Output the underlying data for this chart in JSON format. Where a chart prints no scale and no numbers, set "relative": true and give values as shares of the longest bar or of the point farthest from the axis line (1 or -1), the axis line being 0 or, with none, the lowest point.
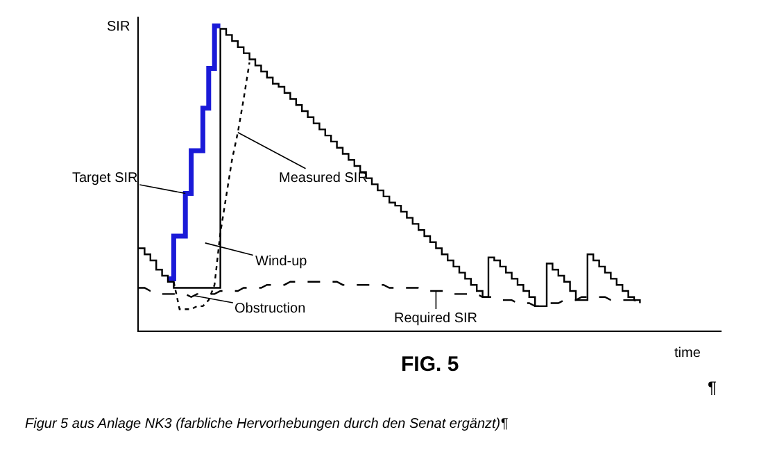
{
  "chart_data": {
    "type": "line",
    "relative": true,
    "title": "FIG. 5",
    "xlabel": "time",
    "ylabel": "SIR",
    "marker": "none",
    "categories": [
      null,
      null,
      null,
      null,
      null,
      null,
      null,
      null,
      null,
      null,
      null,
      null,
      null,
      null,
      null,
      null,
      null,
      null,
      null,
      null,
      null,
      null,
      null,
      null,
      null,
      null,
      null,
      null,
      null,
      null,
      null,
      null,
      null,
      null,
      null,
      null,
      null,
      null,
      null,
      null,
      null,
      null,
      null,
      null,
      null,
      null,
      null,
      null,
      null,
      null,
      null,
      null,
      null,
      null,
      null,
      null,
      null,
      null,
      null,
      null,
      null,
      null,
      null,
      null,
      null,
      null,
      null,
      null,
      null,
      null,
      null,
      null,
      null,
      null,
      null,
      null,
      null,
      null,
      null,
      null,
      null,
      null,
      null,
      null,
      null,
      null,
      null,
      null,
      null,
      null,
      null,
      null,
      null,
      null,
      null,
      null,
      null,
      null,
      null,
      null,
      null
    ],
    "series": [
      {
        "name": "Target SIR",
        "type": "step",
        "color": "#1a1ad8",
        "line_style": "solid",
        "values": [
          null,
          null,
          null,
          null,
          null,
          0.17,
          0.31,
          0.31,
          0.45,
          0.59,
          0.59,
          0.73,
          0.86,
          1.0,
          1.0,
          null,
          null,
          null,
          null,
          null,
          null,
          null,
          null,
          null,
          null,
          null,
          null,
          null,
          null,
          null,
          null,
          null,
          null,
          null,
          null,
          null,
          null,
          null,
          null,
          null,
          null,
          null,
          null,
          null,
          null,
          null,
          null,
          null,
          null,
          null,
          null,
          null,
          null,
          null,
          null,
          null,
          null,
          null,
          null,
          null,
          null,
          null,
          null,
          null,
          null,
          null,
          null,
          null,
          null,
          null,
          null,
          null,
          null,
          null,
          null,
          null,
          null,
          null,
          null,
          null,
          null,
          null,
          null,
          null,
          null,
          null,
          null,
          null,
          null,
          null,
          null,
          null,
          null,
          null,
          null,
          null,
          null,
          null,
          null,
          null,
          null
        ]
      },
      {
        "type": "step",
        "color": "#000000",
        "line_style": "solid",
        "values": [
          0.27,
          0.25,
          0.23,
          0.2,
          0.18,
          0.16,
          0.14,
          0.14,
          0.14,
          0.14,
          0.14,
          0.14,
          0.14,
          0.14,
          0.99,
          0.97,
          0.95,
          0.93,
          0.91,
          0.89,
          0.87,
          0.85,
          0.83,
          0.81,
          0.8,
          0.78,
          0.76,
          0.74,
          0.72,
          0.7,
          0.68,
          0.66,
          0.64,
          0.62,
          0.6,
          0.58,
          0.56,
          0.54,
          0.52,
          0.5,
          0.48,
          0.46,
          0.44,
          0.42,
          0.41,
          0.39,
          0.37,
          0.35,
          0.33,
          0.31,
          0.29,
          0.27,
          0.25,
          0.23,
          0.21,
          0.19,
          0.17,
          0.15,
          0.13,
          0.11,
          0.24,
          0.23,
          0.21,
          0.19,
          0.17,
          0.15,
          0.13,
          0.11,
          0.08,
          0.08,
          0.22,
          0.2,
          0.18,
          0.16,
          0.13,
          0.1,
          0.1,
          0.25,
          0.23,
          0.21,
          0.19,
          0.17,
          0.15,
          0.13,
          0.11,
          0.1,
          0.09,
          null,
          null,
          null,
          null,
          null,
          null,
          null,
          null,
          null,
          null,
          null,
          null,
          null,
          null
        ]
      },
      {
        "name": "Measured SIR",
        "color": "#000000",
        "line_style": "dotted",
        "values": [
          null,
          null,
          null,
          null,
          null,
          null,
          0.16,
          0.07,
          0.07,
          0.07,
          0.08,
          0.08,
          0.1,
          0.15,
          0.32,
          0.44,
          0.56,
          0.65,
          0.76,
          0.88,
          null,
          null,
          null,
          null,
          null,
          null,
          null,
          null,
          null,
          null,
          null,
          null,
          null,
          null,
          null,
          null,
          null,
          null,
          null,
          null,
          null,
          null,
          null,
          null,
          null,
          null,
          null,
          null,
          null,
          null,
          null,
          null,
          null,
          null,
          null,
          null,
          null,
          null,
          null,
          null,
          null,
          null,
          null,
          null,
          null,
          null,
          null,
          null,
          null,
          null,
          null,
          null,
          null,
          null,
          null,
          null,
          null,
          null,
          null,
          null,
          null,
          null,
          null,
          null,
          null,
          null,
          null,
          null,
          null,
          null,
          null,
          null,
          null,
          null,
          null,
          null,
          null,
          null,
          null,
          null,
          null
        ]
      },
      {
        "name": "Required SIR",
        "color": "#000000",
        "line_style": "dashed",
        "values": [
          0.14,
          0.14,
          0.13,
          0.13,
          0.12,
          0.12,
          0.12,
          0.12,
          0.12,
          0.11,
          0.12,
          0.12,
          0.12,
          0.12,
          0.13,
          0.13,
          0.13,
          0.13,
          0.14,
          0.14,
          0.14,
          0.14,
          0.15,
          0.15,
          0.15,
          0.15,
          0.16,
          0.16,
          0.16,
          0.16,
          0.16,
          0.16,
          0.16,
          0.16,
          0.16,
          0.15,
          0.15,
          0.15,
          0.15,
          0.15,
          0.15,
          0.15,
          0.15,
          0.14,
          0.14,
          0.14,
          0.14,
          0.14,
          0.14,
          0.13,
          0.13,
          0.13,
          0.13,
          0.13,
          0.12,
          0.12,
          0.12,
          0.12,
          0.12,
          0.11,
          0.11,
          0.11,
          0.1,
          0.1,
          0.1,
          0.09,
          0.09,
          0.09,
          0.08,
          0.08,
          0.09,
          0.09,
          0.09,
          0.1,
          0.1,
          0.1,
          0.11,
          0.11,
          0.11,
          0.11,
          0.11,
          0.1,
          0.1,
          0.1,
          0.1,
          0.1,
          0.09,
          null,
          null,
          null,
          null,
          null,
          null,
          null,
          null,
          null,
          null,
          null,
          null,
          null,
          null
        ]
      }
    ],
    "annotations": [
      "Wind-up",
      "Obstruction",
      "Figur 5 aus Anlage NK3 (farbliche Hervorhebungen durch den Senat ergänzt)¶",
      "¶"
    ]
  }
}
